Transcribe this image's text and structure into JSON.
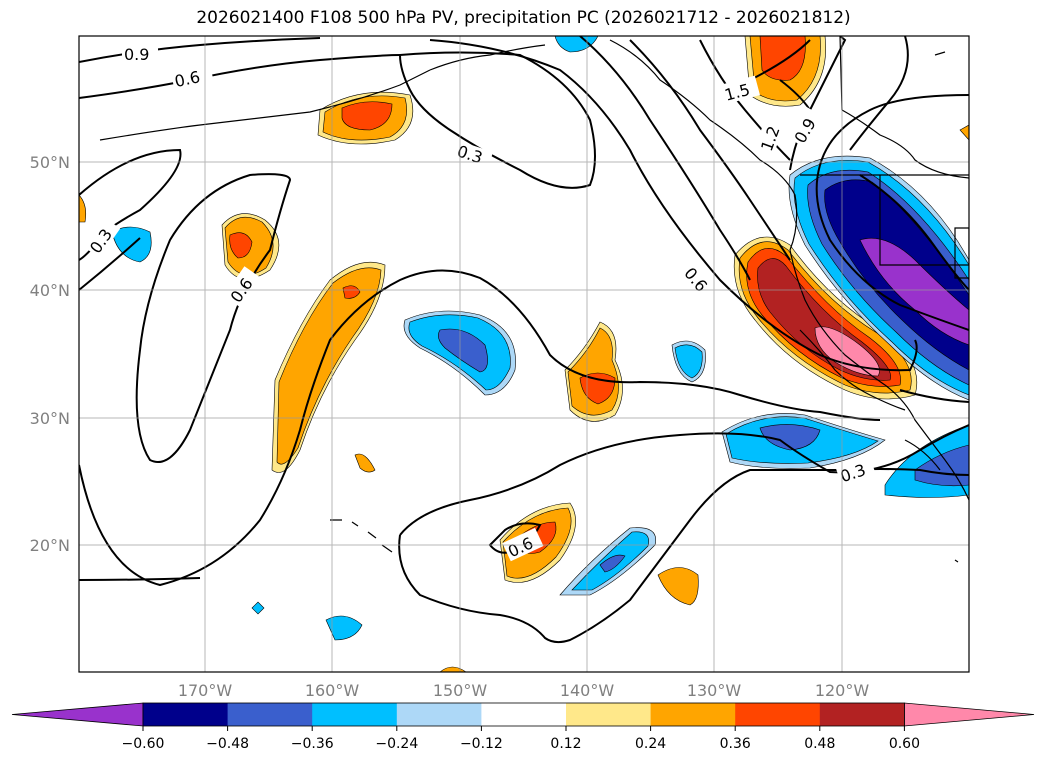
{
  "title": "2026021400 F108 500 hPa PV, precipitation PC (2026021712 - 2026021812)",
  "map": {
    "lat_labels": [
      "50°N",
      "40°N",
      "30°N",
      "20°N"
    ],
    "lon_labels": [
      "170°W",
      "160°W",
      "150°W",
      "140°W",
      "130°W",
      "120°W"
    ],
    "contour_labels": [
      "0.9",
      "0.6",
      "0.3",
      "0.3",
      "0.6",
      "0.6",
      "1.5",
      "1.2",
      "0.9",
      "0.3",
      "0.6"
    ]
  },
  "colorbar": {
    "ticks": [
      "−0.60",
      "−0.48",
      "−0.36",
      "−0.24",
      "−0.12",
      "0.12",
      "0.24",
      "0.36",
      "0.48",
      "0.60"
    ],
    "colors": [
      "#9932cc",
      "#00008b",
      "#3a5fcd",
      "#00bfff",
      "#add8f7",
      "#ffffff",
      "#ffe88a",
      "#ffa500",
      "#ff4500",
      "#b22222",
      "#ff88aa"
    ]
  }
}
